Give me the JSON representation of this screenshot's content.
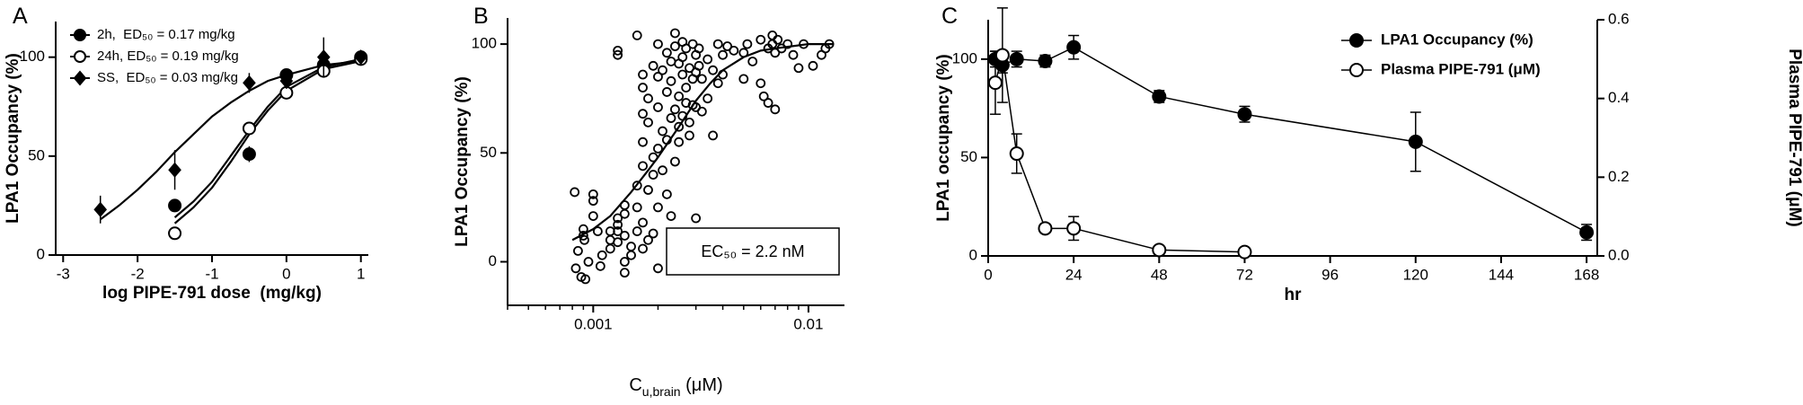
{
  "chart_data": [
    {
      "type": "dose_response",
      "title": "A",
      "x_label": "log PIPE-791 dose  (mg/kg)",
      "y_label": "LPA1 Occupancy (%)",
      "xlim": [
        -3.1,
        1.1
      ],
      "xticks": [
        -3,
        -2,
        -1,
        0,
        1
      ],
      "ylim": [
        0,
        118
      ],
      "yticks": [
        0,
        50,
        100
      ],
      "series": [
        {
          "name": "2h,  ED₅₀ = 0.17 mg/kg",
          "marker": "circle-filled",
          "color": "#000000",
          "x": [
            -1.5,
            -0.5,
            0,
            0.5,
            1
          ],
          "values": [
            25,
            51,
            91,
            96,
            100
          ],
          "errors": [
            3,
            4,
            3,
            2,
            1
          ],
          "fit": {
            "x": [
              -1.5,
              -1.25,
              -1,
              -0.75,
              -0.5,
              -0.25,
              0,
              0.5,
              1
            ],
            "values": [
              19,
              27,
              37,
              50,
              63,
              75,
              85,
              95,
              99
            ]
          }
        },
        {
          "name": "24h, ED₅₀ = 0.19 mg/kg",
          "marker": "circle-open",
          "color": "#000000",
          "x": [
            -1.5,
            -0.5,
            0,
            0.5,
            1
          ],
          "values": [
            11,
            64,
            82,
            93,
            99
          ],
          "errors": [
            1,
            2,
            2,
            2,
            1
          ],
          "fit": {
            "x": [
              -1.5,
              -1.25,
              -1,
              -0.75,
              -0.5,
              -0.25,
              0,
              0.5,
              1
            ],
            "values": [
              16,
              24,
              34,
              47,
              61,
              73,
              83,
              94,
              98
            ]
          }
        },
        {
          "name": "SS,  ED₅₀ = 0.03 mg/kg",
          "marker": "diamond",
          "color": "#000000",
          "x": [
            -2.5,
            -1.5,
            -0.5,
            0,
            0.5,
            1
          ],
          "values": [
            23,
            43,
            87,
            88,
            100,
            100
          ],
          "errors": [
            7,
            10,
            5,
            4,
            10,
            1
          ],
          "fit": {
            "x": [
              -2.5,
              -2.25,
              -2,
              -1.75,
              -1.5,
              -1.25,
              -1,
              -0.75,
              -0.5,
              -0.25,
              0,
              0.5,
              1
            ],
            "values": [
              18,
              25,
              33,
              42,
              52,
              61,
              70,
              77,
              83,
              88,
              91,
              96,
              98
            ]
          }
        }
      ]
    },
    {
      "type": "scatter",
      "title": "B",
      "x_label": {
        "text": "C",
        "sub": "u,brain",
        "unit": " (μM)"
      },
      "y_label": "LPA1 Occupancy (%)",
      "xscale": "log",
      "xlim": [
        0.0004,
        0.0147
      ],
      "xticks": [
        0.001,
        0.01
      ],
      "minor_xticks": [
        0.0004,
        0.0005,
        0.0006,
        0.0007,
        0.0008,
        0.0009,
        0.002,
        0.003,
        0.004,
        0.005,
        0.006,
        0.007,
        0.008,
        0.009
      ],
      "ylim": [
        -20,
        112
      ],
      "yticks": [
        0,
        50,
        100
      ],
      "annotation": "EC₅₀ = 2.2 nM",
      "x": [
        0.00082,
        0.00083,
        0.00085,
        0.00088,
        0.0009,
        0.0009,
        0.00091,
        0.00092,
        0.00095,
        0.001,
        0.001,
        0.001,
        0.00105,
        0.00108,
        0.0011,
        0.0012,
        0.0012,
        0.0012,
        0.0013,
        0.0013,
        0.0013,
        0.0013,
        0.0013,
        0.0013,
        0.0014,
        0.0014,
        0.0014,
        0.0014,
        0.0014,
        0.0015,
        0.0015,
        0.0016,
        0.0016,
        0.0016,
        0.0016,
        0.0017,
        0.0017,
        0.0017,
        0.0017,
        0.0017,
        0.0017,
        0.0017,
        0.0018,
        0.0018,
        0.0018,
        0.0018,
        0.0019,
        0.0019,
        0.0019,
        0.0019,
        0.002,
        0.002,
        0.002,
        0.002,
        0.002,
        0.002,
        0.0021,
        0.0021,
        0.0021,
        0.0022,
        0.0022,
        0.0022,
        0.0022,
        0.0023,
        0.0023,
        0.0023,
        0.0023,
        0.0024,
        0.0024,
        0.0024,
        0.0024,
        0.0025,
        0.0025,
        0.0025,
        0.0025,
        0.0026,
        0.0026,
        0.0026,
        0.0026,
        0.0027,
        0.0027,
        0.0027,
        0.0028,
        0.0028,
        0.0028,
        0.0029,
        0.0029,
        0.0029,
        0.003,
        0.003,
        0.003,
        0.003,
        0.0031,
        0.0031,
        0.0032,
        0.0032,
        0.0034,
        0.0034,
        0.0036,
        0.0036,
        0.0038,
        0.0038,
        0.004,
        0.004,
        0.0042,
        0.0045,
        0.005,
        0.005,
        0.0052,
        0.0055,
        0.006,
        0.006,
        0.0062,
        0.0065,
        0.0065,
        0.0068,
        0.0068,
        0.007,
        0.007,
        0.0072,
        0.0075,
        0.008,
        0.0085,
        0.009,
        0.0095,
        0.0105,
        0.0115,
        0.012,
        0.0125
      ],
      "values": [
        32,
        -3,
        5,
        -7,
        12,
        15,
        10,
        -8,
        0,
        28,
        31,
        21,
        14,
        -2,
        3,
        10,
        14,
        6,
        95,
        97,
        17,
        14,
        9,
        20,
        26,
        22,
        12,
        0,
        -5,
        7,
        3,
        104,
        35,
        25,
        14,
        86,
        80,
        68,
        55,
        44,
        18,
        6,
        75,
        64,
        33,
        10,
        90,
        48,
        40,
        13,
        100,
        85,
        71,
        52,
        25,
        -3,
        88,
        60,
        42,
        96,
        78,
        56,
        31,
        92,
        83,
        66,
        21,
        105,
        99,
        70,
        46,
        91,
        76,
        62,
        55,
        101,
        94,
        86,
        67,
        98,
        80,
        73,
        89,
        64,
        58,
        100,
        84,
        72,
        95,
        87,
        71,
        20,
        98,
        90,
        84,
        69,
        93,
        75,
        88,
        58,
        100,
        82,
        95,
        86,
        99,
        97,
        96,
        84,
        100,
        92,
        82,
        102,
        76,
        98,
        73,
        104,
        100,
        96,
        70,
        102,
        98,
        100,
        95,
        89,
        100,
        90,
        95,
        98,
        100
      ],
      "fit": {
        "x": [
          0.0008,
          0.001,
          0.0012,
          0.0015,
          0.0018,
          0.002,
          0.0022,
          0.0025,
          0.003,
          0.0035,
          0.004,
          0.005,
          0.006,
          0.007,
          0.01,
          0.013
        ],
        "values": [
          10,
          15,
          21,
          32,
          42,
          48,
          54,
          62,
          74,
          82,
          88,
          94,
          97,
          98,
          100,
          100
        ]
      }
    },
    {
      "type": "line",
      "title": "C",
      "x_label": "hr",
      "y_label": "LPA1 occupancy (%)",
      "y2_label": "Plasma PIPE-791 (μM)",
      "xlim": [
        0,
        171
      ],
      "xticks": [
        0,
        24,
        48,
        72,
        96,
        120,
        144,
        168
      ],
      "ylim": [
        0,
        120
      ],
      "yticks": [
        0,
        50,
        100
      ],
      "y2lim": [
        0,
        0.6
      ],
      "y2ticks": [
        {
          "value": 0,
          "label": "0.0"
        },
        0.2,
        0.4,
        0.6
      ],
      "series": [
        {
          "name": "LPA1 Occupancy (%)",
          "marker": "circle-filled",
          "color": "#000000",
          "axis": "y",
          "x": [
            2,
            4,
            8,
            16,
            24,
            48,
            72,
            120,
            168
          ],
          "values": [
            100,
            97,
            100,
            99,
            106,
            81,
            72,
            58,
            12
          ],
          "errors": [
            4,
            4,
            4,
            3,
            6,
            3,
            4,
            15,
            4
          ]
        },
        {
          "name": "Plasma PIPE-791 (μM)",
          "marker": "circle-open",
          "color": "#000000",
          "axis": "y2",
          "x": [
            2,
            4,
            8,
            16,
            24,
            48,
            72
          ],
          "values": [
            0.44,
            0.51,
            0.26,
            0.07,
            0.07,
            0.015,
            0.01
          ],
          "errors": [
            0.08,
            0.12,
            0.05,
            0.01,
            0.03,
            0.005,
            0.005
          ]
        }
      ]
    }
  ]
}
